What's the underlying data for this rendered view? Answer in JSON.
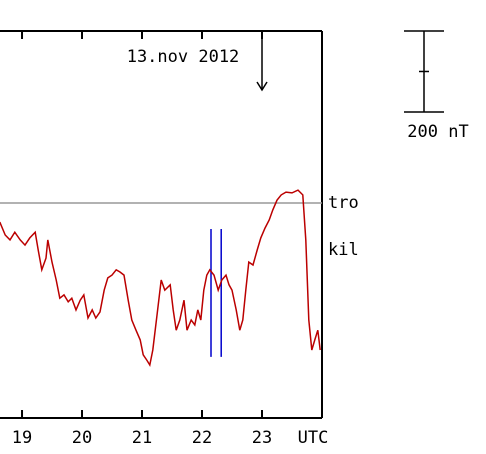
{
  "chart_data": {
    "type": "line",
    "title": "13.nov 2012",
    "xlabel": "UTC",
    "xlim": [
      18.633,
      24
    ],
    "xticks": [
      19,
      20,
      21,
      22,
      23
    ],
    "ylim": [
      -531,
      425
    ],
    "title_arrow_x": 23,
    "vlines": {
      "color": "#0000cc",
      "x": [
        22.15,
        22.32
      ],
      "ylim": [
        -64,
        -380
      ]
    },
    "scale_bar": {
      "value": 200,
      "label": "200 nT"
    },
    "series": [
      {
        "name": "tro",
        "color": "#999999",
        "x": [
          18.633,
          24
        ],
        "values": [
          0,
          0
        ]
      },
      {
        "name": "kil",
        "color": "#bb0000",
        "x": [
          18.63,
          18.72,
          18.8,
          18.88,
          18.97,
          19.05,
          19.13,
          19.22,
          19.27,
          19.33,
          19.4,
          19.43,
          19.5,
          19.57,
          19.63,
          19.7,
          19.77,
          19.83,
          19.9,
          19.97,
          20.03,
          20.1,
          20.17,
          20.23,
          20.3,
          20.37,
          20.43,
          20.5,
          20.57,
          20.63,
          20.7,
          20.77,
          20.83,
          20.9,
          20.97,
          21.02,
          21.08,
          21.13,
          21.18,
          21.25,
          21.32,
          21.38,
          21.47,
          21.52,
          21.57,
          21.63,
          21.7,
          21.75,
          21.82,
          21.88,
          21.93,
          21.98,
          22.03,
          22.08,
          22.13,
          22.2,
          22.27,
          22.33,
          22.4,
          22.45,
          22.5,
          22.57,
          22.63,
          22.68,
          22.73,
          22.78,
          22.85,
          22.92,
          22.98,
          23.05,
          23.12,
          23.18,
          23.25,
          23.32,
          23.4,
          23.5,
          23.6,
          23.68,
          23.73,
          23.78,
          23.83,
          23.88,
          23.93,
          23.97
        ],
        "values": [
          -47,
          -79,
          -91,
          -72,
          -91,
          -104,
          -86,
          -72,
          -116,
          -165,
          -136,
          -91,
          -146,
          -190,
          -235,
          -227,
          -244,
          -235,
          -264,
          -240,
          -227,
          -284,
          -264,
          -284,
          -269,
          -215,
          -185,
          -178,
          -165,
          -170,
          -178,
          -240,
          -289,
          -314,
          -338,
          -375,
          -388,
          -400,
          -363,
          -277,
          -190,
          -215,
          -202,
          -264,
          -314,
          -289,
          -240,
          -314,
          -289,
          -301,
          -264,
          -289,
          -215,
          -178,
          -165,
          -178,
          -215,
          -190,
          -178,
          -202,
          -215,
          -264,
          -314,
          -289,
          -215,
          -146,
          -153,
          -116,
          -86,
          -62,
          -42,
          -17,
          7,
          20,
          27,
          25,
          32,
          20,
          -91,
          -289,
          -363,
          -338,
          -314,
          -363
        ]
      }
    ]
  }
}
